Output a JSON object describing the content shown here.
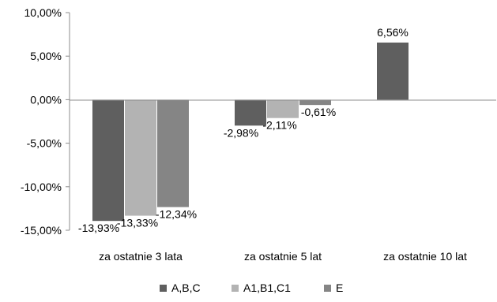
{
  "chart_data": {
    "type": "bar",
    "categories": [
      "za ostatnie  3 lata",
      "za ostatnie  5 lat",
      "za ostatnie  10 lat"
    ],
    "series": [
      {
        "name": "A,B,C",
        "values": [
          -13.93,
          -2.98,
          6.56
        ],
        "labels": [
          "-13,93%",
          "-2,98%",
          "6,56%"
        ],
        "color": "#5f5f5f"
      },
      {
        "name": "A1,B1,C1",
        "values": [
          -13.33,
          -2.11,
          null
        ],
        "labels": [
          "-13,33%",
          "-2,11%",
          ""
        ],
        "color": "#b3b3b3"
      },
      {
        "name": "E",
        "values": [
          -12.34,
          -0.61,
          null
        ],
        "labels": [
          "-12,34%",
          "-0,61%",
          ""
        ],
        "color": "#858585"
      }
    ],
    "yticks": [
      10,
      5,
      0,
      -5,
      -10,
      -15
    ],
    "ytick_labels": [
      "10,00%",
      "5,00%",
      "0,00%",
      "-5,00%",
      "-10,00%",
      "-15,00%"
    ],
    "ylim": [
      -15,
      10
    ],
    "grid": false,
    "legend_position": "bottom"
  }
}
